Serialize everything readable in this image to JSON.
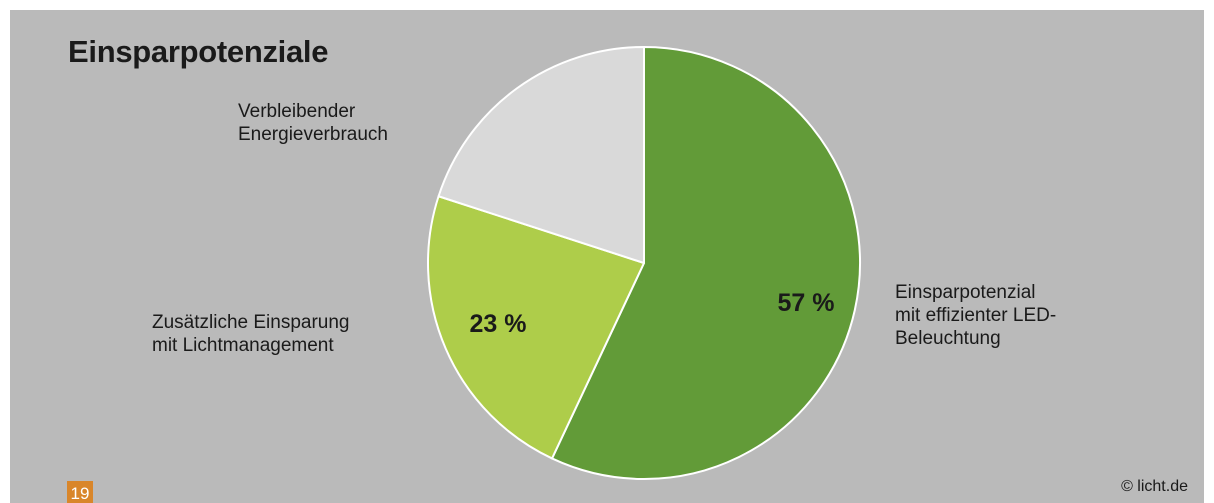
{
  "slide": {
    "title": "Einsparpotenziale",
    "page_number": "19",
    "copyright": "© licht.de"
  },
  "chart_data": {
    "type": "pie",
    "title": "Einsparpotenziale",
    "slices": [
      {
        "label": "Einsparpotenzial\nmit effizienter LED-\nBeleuchtung",
        "value": 57,
        "value_label": "57 %",
        "color": "#629b38"
      },
      {
        "label": "Zusätzliche Einsparung\nmit Lichtmanagement",
        "value": 23,
        "value_label": "23 %",
        "color": "#aecd4a"
      },
      {
        "label": "Verbleibender\nEnergieverbrauch",
        "value": 20,
        "value_label": "",
        "color": "#d9d9d9"
      }
    ],
    "start_angle_deg": 0,
    "direction": "clockwise",
    "slice_border_color": "#ffffff"
  }
}
